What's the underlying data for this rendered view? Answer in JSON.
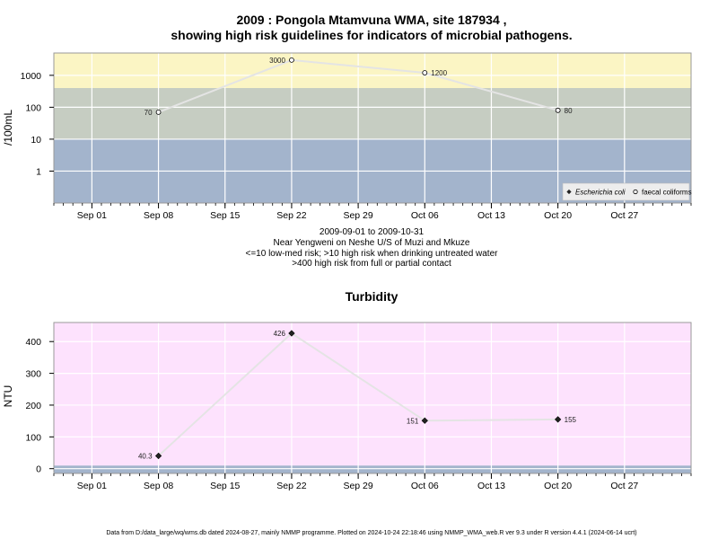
{
  "chart_data": [
    {
      "type": "line",
      "title": "2009 : Pongola Mtamvuna WMA, site 187934 ,",
      "subtitle": "showing high risk guidelines for indicators of microbial pathogens.",
      "xlabel_lines": [
        "2009-09-01 to 2009-10-31",
        "Near Yengweni on Neshe U/S of Muzi and Mkuze",
        "<=10 low-med risk; >10 high risk when drinking untreated water",
        ">400 high risk from full or partial contact"
      ],
      "ylabel": "/100mL",
      "y_scale": "log",
      "ylim": [
        0.1,
        5000
      ],
      "y_ticks": [
        1,
        10,
        100,
        1000
      ],
      "y_tick_labels": [
        "1",
        "10",
        "100",
        "1000"
      ],
      "xlim": [
        "2009-08-28",
        "2009-11-03"
      ],
      "x_ticks": [
        "2009-09-01",
        "2009-09-08",
        "2009-09-15",
        "2009-09-22",
        "2009-09-29",
        "2009-10-06",
        "2009-10-13",
        "2009-10-20",
        "2009-10-27"
      ],
      "x_tick_labels": [
        "Sep 01",
        "Sep 08",
        "Sep 15",
        "Sep 22",
        "Sep 29",
        "Oct 06",
        "Oct 13",
        "Oct 20",
        "Oct 27"
      ],
      "bands": [
        {
          "from": 0.1,
          "to": 10,
          "color": "#a3b4cc"
        },
        {
          "from": 10,
          "to": 400,
          "color": "#c6cdc2"
        },
        {
          "from": 400,
          "to": 5000,
          "color": "#fbf5c4"
        }
      ],
      "series": [
        {
          "name": "faecal coliforms",
          "marker": "open-circle",
          "points": [
            {
              "x": "2009-09-08",
              "y": 70,
              "label": "70",
              "side": "left"
            },
            {
              "x": "2009-09-22",
              "y": 3000,
              "label": "3000",
              "side": "left"
            },
            {
              "x": "2009-10-06",
              "y": 1200,
              "label": "1200",
              "side": "right"
            },
            {
              "x": "2009-10-20",
              "y": 80,
              "label": "80",
              "side": "right"
            }
          ]
        }
      ],
      "legend": {
        "placement": "bottom-right",
        "entries": [
          {
            "label": "Escherichia coli",
            "marker": "filled-diamond",
            "italic": true
          },
          {
            "label": "faecal coliforms",
            "marker": "open-circle",
            "italic": false
          }
        ]
      },
      "grid": true
    },
    {
      "type": "line",
      "title": "Turbidity",
      "ylabel": "NTU",
      "ylim": [
        -15,
        460
      ],
      "y_ticks": [
        0,
        100,
        200,
        300,
        400
      ],
      "y_tick_labels": [
        "0",
        "100",
        "200",
        "300",
        "400"
      ],
      "xlim": [
        "2009-08-28",
        "2009-11-03"
      ],
      "x_ticks": [
        "2009-09-01",
        "2009-09-08",
        "2009-09-15",
        "2009-09-22",
        "2009-09-29",
        "2009-10-06",
        "2009-10-13",
        "2009-10-20",
        "2009-10-27"
      ],
      "x_tick_labels": [
        "Sep 01",
        "Sep 08",
        "Sep 15",
        "Sep 22",
        "Sep 29",
        "Oct 06",
        "Oct 13",
        "Oct 20",
        "Oct 27"
      ],
      "bands": [
        {
          "from": -15,
          "to": 10,
          "color": "#a3b4cc"
        },
        {
          "from": 10,
          "to": 460,
          "color": "#fde2fd"
        }
      ],
      "series": [
        {
          "marker": "filled-diamond",
          "points": [
            {
              "x": "2009-09-08",
              "y": 40.3,
              "label": "40.3",
              "side": "left"
            },
            {
              "x": "2009-09-22",
              "y": 426,
              "label": "426",
              "side": "left"
            },
            {
              "x": "2009-10-06",
              "y": 151,
              "label": "151",
              "side": "left"
            },
            {
              "x": "2009-10-20",
              "y": 155,
              "label": "155",
              "side": "right"
            }
          ]
        }
      ],
      "grid": true
    }
  ],
  "footer": "Data from D:/data_large/wq/wms.db dated 2024-08-27, mainly NMMP programme. Plotted on 2024-10-24 22:18:46 using NMMP_WMA_web.R ver 9.3 under R version 4.4.1 (2024-06-14 ucrt)"
}
